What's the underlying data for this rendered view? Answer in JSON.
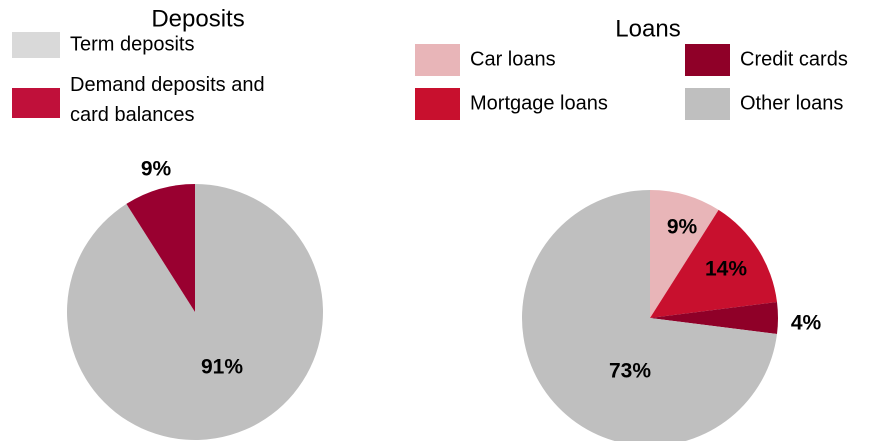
{
  "chart_data": [
    {
      "type": "pie",
      "title": "Deposits",
      "categories": [
        "Term deposits",
        "Demand deposits  and card balances"
      ],
      "values": [
        91,
        9
      ],
      "value_labels": [
        "91%",
        "9%"
      ],
      "colors": [
        "#bfbfbf",
        "#990030"
      ],
      "legend_colors": [
        "#d9d9d9",
        "#c0103a"
      ]
    },
    {
      "type": "pie",
      "title": "Loans",
      "categories": [
        "Car loans",
        "Mortgage loans",
        "Credit cards",
        "Other loans"
      ],
      "values": [
        9,
        14,
        4,
        73
      ],
      "value_labels": [
        "9%",
        "14%",
        "4%",
        "73%"
      ],
      "colors": [
        "#e8b5b8",
        "#c8102e",
        "#8f0028",
        "#bfbfbf"
      ],
      "legend_colors": [
        "#e8b5b8",
        "#c8102e",
        "#8f0028",
        "#bfbfbf"
      ]
    }
  ]
}
